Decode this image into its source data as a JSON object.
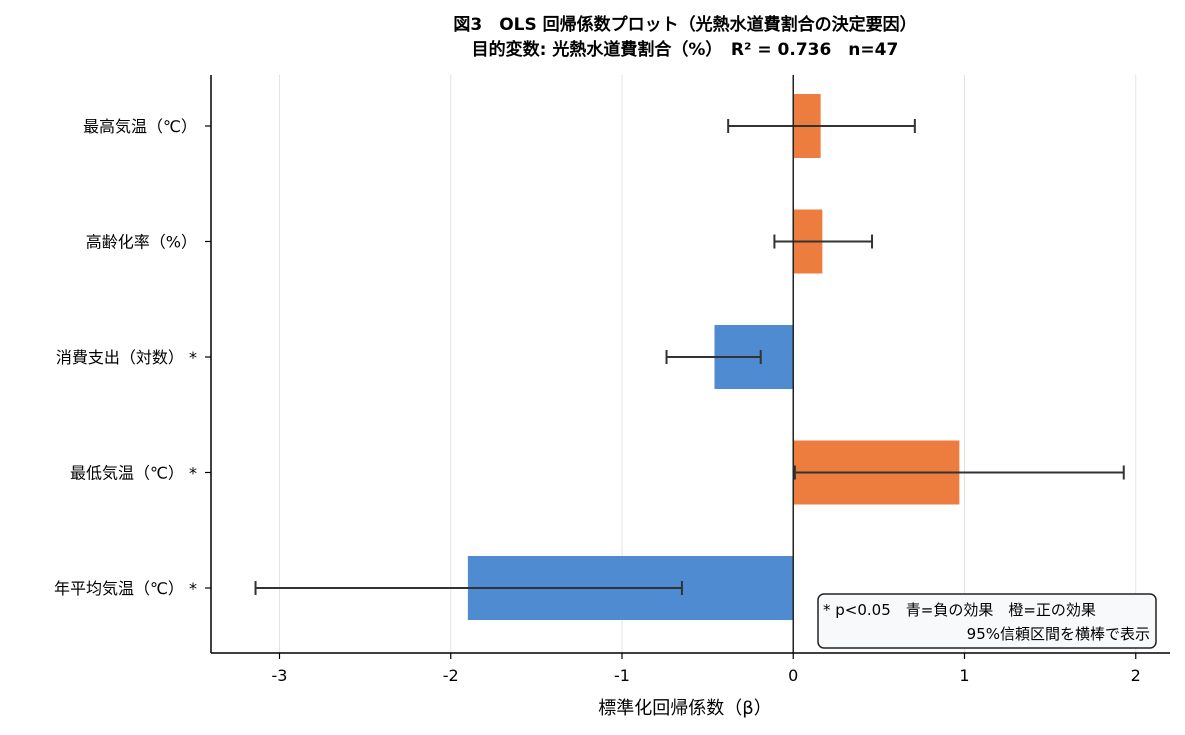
{
  "chart_data": {
    "type": "bar",
    "orientation": "horizontal",
    "title": "図3　OLS 回帰係数プロット（光熱水道費割合の決定要因）",
    "subtitle": "目的変数: 光熱水道費割合（%）　R² = 0.736　n=47",
    "xlabel": "標準化回帰係数（β）",
    "ylabel": "",
    "xlim": [
      -3.4,
      2.2
    ],
    "xticks": [
      -3,
      -2,
      -1,
      0,
      1,
      2
    ],
    "xtick_labels": [
      "-3",
      "-2",
      "-1",
      "0",
      "1",
      "2"
    ],
    "grid": "vertical",
    "categories": [
      "最高気温（℃）",
      "高齢化率（%）",
      "消費支出（対数）",
      "最低気温（℃）",
      "年平均気温（℃）"
    ],
    "significance": [
      "",
      "",
      "*",
      "*",
      "*"
    ],
    "values": [
      0.16,
      0.17,
      -0.46,
      0.97,
      -1.9
    ],
    "ci_low": [
      -0.38,
      -0.11,
      -0.74,
      0.01,
      -3.14
    ],
    "ci_high": [
      0.71,
      0.46,
      -0.19,
      1.93,
      -0.65
    ],
    "colors": {
      "positive": "#ED7D3F",
      "negative": "#4F8BD0",
      "errorbar": "#333333",
      "grid": "#e3e3e3",
      "zero_line": "#222222"
    },
    "note": {
      "line1": "* p<0.05　青=負の効果　橙=正の効果",
      "line2": "95%信頼区間を横棒で表示"
    }
  }
}
